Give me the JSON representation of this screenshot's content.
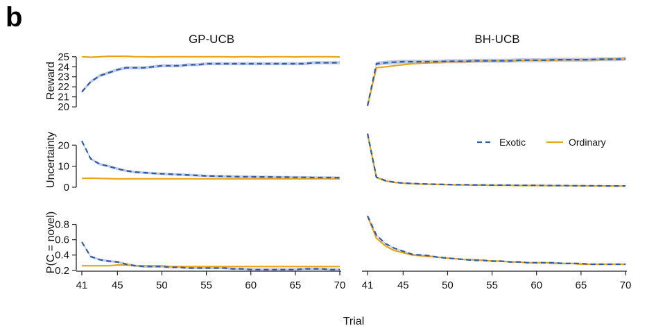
{
  "panel_label": "b",
  "chart_data": {
    "type": "line",
    "xlabel": "Trial",
    "x_ticks": [
      41,
      45,
      50,
      55,
      60,
      65,
      70
    ],
    "xlim": [
      41,
      70
    ],
    "x": [
      41,
      42,
      43,
      44,
      45,
      46,
      47,
      48,
      49,
      50,
      51,
      52,
      53,
      54,
      55,
      56,
      57,
      58,
      59,
      60,
      61,
      62,
      63,
      64,
      65,
      66,
      67,
      68,
      69,
      70
    ],
    "facets": [
      "GP-UCB",
      "BH-UCB"
    ],
    "legend": {
      "placement": "inside middle-right panel",
      "entries": [
        {
          "name": "Exotic",
          "color": "#2B5DA8",
          "style": "dashed"
        },
        {
          "name": "Ordinary",
          "color": "#E8A317",
          "style": "solid"
        }
      ]
    },
    "band_color": "#B4BEE0",
    "rows": [
      {
        "ylabel": "Reward",
        "ylim": [
          19.8,
          25.4
        ],
        "yticks": [
          20,
          21,
          22,
          23,
          24,
          25
        ],
        "panels": [
          {
            "facet": "GP-UCB",
            "series": [
              {
                "name": "Exotic",
                "band": 0.15,
                "values": [
                  21.5,
                  22.5,
                  23.1,
                  23.4,
                  23.7,
                  23.9,
                  23.9,
                  23.9,
                  24.0,
                  24.1,
                  24.1,
                  24.1,
                  24.2,
                  24.2,
                  24.3,
                  24.3,
                  24.3,
                  24.3,
                  24.3,
                  24.3,
                  24.3,
                  24.3,
                  24.3,
                  24.3,
                  24.3,
                  24.3,
                  24.4,
                  24.4,
                  24.4,
                  24.4
                ]
              },
              {
                "name": "Ordinary",
                "values": [
                  25.0,
                  24.95,
                  25.0,
                  25.05,
                  25.05,
                  25.05,
                  25.0,
                  25.0,
                  24.98,
                  25.0,
                  25.0,
                  25.0,
                  25.0,
                  25.0,
                  25.0,
                  25.0,
                  25.0,
                  24.98,
                  25.0,
                  25.0,
                  24.98,
                  25.0,
                  25.0,
                  25.0,
                  24.98,
                  25.0,
                  25.0,
                  25.0,
                  25.0,
                  24.98
                ]
              }
            ]
          },
          {
            "facet": "BH-UCB",
            "series": [
              {
                "name": "Exotic",
                "band": 0.2,
                "values": [
                  20.1,
                  24.3,
                  24.4,
                  24.45,
                  24.5,
                  24.5,
                  24.5,
                  24.5,
                  24.5,
                  24.55,
                  24.55,
                  24.55,
                  24.6,
                  24.6,
                  24.6,
                  24.6,
                  24.6,
                  24.65,
                  24.65,
                  24.65,
                  24.65,
                  24.7,
                  24.7,
                  24.7,
                  24.7,
                  24.7,
                  24.75,
                  24.75,
                  24.75,
                  24.8
                ]
              },
              {
                "name": "Ordinary",
                "values": [
                  20.1,
                  23.9,
                  24.0,
                  24.1,
                  24.2,
                  24.3,
                  24.35,
                  24.4,
                  24.45,
                  24.5,
                  24.5,
                  24.5,
                  24.55,
                  24.55,
                  24.6,
                  24.6,
                  24.6,
                  24.6,
                  24.65,
                  24.65,
                  24.65,
                  24.65,
                  24.7,
                  24.7,
                  24.7,
                  24.7,
                  24.7,
                  24.75,
                  24.75,
                  24.75
                ]
              }
            ]
          }
        ]
      },
      {
        "ylabel": "Uncertainty",
        "ylim": [
          -1,
          27
        ],
        "yticks": [
          0,
          10,
          20
        ],
        "panels": [
          {
            "facet": "GP-UCB",
            "series": [
              {
                "name": "Exotic",
                "band": 0.6,
                "values": [
                  22.0,
                  13.5,
                  11.0,
                  10.0,
                  8.8,
                  7.8,
                  7.2,
                  6.9,
                  6.6,
                  6.4,
                  6.2,
                  6.0,
                  5.8,
                  5.6,
                  5.4,
                  5.3,
                  5.2,
                  5.1,
                  5.0,
                  5.0,
                  4.9,
                  4.9,
                  4.8,
                  4.8,
                  4.7,
                  4.7,
                  4.6,
                  4.6,
                  4.6,
                  4.5
                ]
              },
              {
                "name": "Ordinary",
                "values": [
                  4.2,
                  4.3,
                  4.2,
                  4.1,
                  4.0,
                  4.0,
                  4.0,
                  4.0,
                  4.0,
                  4.0,
                  4.0,
                  4.0,
                  4.0,
                  4.0,
                  4.0,
                  4.0,
                  4.0,
                  4.0,
                  4.0,
                  4.0,
                  4.0,
                  4.0,
                  4.0,
                  4.0,
                  4.0,
                  4.0,
                  4.0,
                  4.0,
                  4.0,
                  4.0
                ]
              }
            ]
          },
          {
            "facet": "BH-UCB",
            "series": [
              {
                "name": "Exotic",
                "band": 0.3,
                "values": [
                  25.5,
                  4.8,
                  3.2,
                  2.4,
                  2.0,
                  1.8,
                  1.6,
                  1.5,
                  1.4,
                  1.3,
                  1.2,
                  1.2,
                  1.1,
                  1.1,
                  1.0,
                  1.0,
                  1.0,
                  0.9,
                  0.9,
                  0.9,
                  0.8,
                  0.8,
                  0.8,
                  0.7,
                  0.7,
                  0.7,
                  0.7,
                  0.6,
                  0.6,
                  0.6
                ]
              },
              {
                "name": "Ordinary",
                "values": [
                  25.5,
                  4.6,
                  3.0,
                  2.3,
                  1.9,
                  1.7,
                  1.5,
                  1.4,
                  1.3,
                  1.2,
                  1.1,
                  1.1,
                  1.0,
                  1.0,
                  0.9,
                  0.9,
                  0.9,
                  0.8,
                  0.8,
                  0.8,
                  0.8,
                  0.7,
                  0.7,
                  0.7,
                  0.7,
                  0.6,
                  0.6,
                  0.6,
                  0.6,
                  0.6
                ]
              }
            ]
          }
        ]
      },
      {
        "ylabel": "P(C = novel)",
        "ylim": [
          0.18,
          0.95
        ],
        "yticks": [
          0.2,
          0.4,
          0.6,
          0.8
        ],
        "panels": [
          {
            "facet": "GP-UCB",
            "series": [
              {
                "name": "Exotic",
                "band": 0.015,
                "values": [
                  0.57,
                  0.38,
                  0.34,
                  0.32,
                  0.31,
                  0.28,
                  0.26,
                  0.25,
                  0.25,
                  0.25,
                  0.24,
                  0.24,
                  0.23,
                  0.23,
                  0.23,
                  0.23,
                  0.23,
                  0.22,
                  0.22,
                  0.21,
                  0.21,
                  0.21,
                  0.21,
                  0.21,
                  0.21,
                  0.22,
                  0.22,
                  0.22,
                  0.21,
                  0.21
                ]
              },
              {
                "name": "Ordinary",
                "values": [
                  0.26,
                  0.26,
                  0.26,
                  0.26,
                  0.27,
                  0.27,
                  0.26,
                  0.26,
                  0.26,
                  0.26,
                  0.25,
                  0.25,
                  0.25,
                  0.25,
                  0.25,
                  0.25,
                  0.25,
                  0.25,
                  0.25,
                  0.25,
                  0.25,
                  0.25,
                  0.25,
                  0.25,
                  0.25,
                  0.25,
                  0.25,
                  0.25,
                  0.25,
                  0.25
                ]
              }
            ]
          },
          {
            "facet": "BH-UCB",
            "series": [
              {
                "name": "Exotic",
                "band": 0.01,
                "values": [
                  0.91,
                  0.66,
                  0.55,
                  0.49,
                  0.45,
                  0.41,
                  0.4,
                  0.39,
                  0.37,
                  0.36,
                  0.35,
                  0.34,
                  0.33,
                  0.33,
                  0.32,
                  0.32,
                  0.31,
                  0.31,
                  0.3,
                  0.3,
                  0.3,
                  0.3,
                  0.29,
                  0.29,
                  0.29,
                  0.28,
                  0.28,
                  0.28,
                  0.28,
                  0.28
                ]
              },
              {
                "name": "Ordinary",
                "values": [
                  0.91,
                  0.62,
                  0.52,
                  0.46,
                  0.43,
                  0.4,
                  0.39,
                  0.38,
                  0.37,
                  0.36,
                  0.35,
                  0.34,
                  0.34,
                  0.33,
                  0.32,
                  0.32,
                  0.31,
                  0.31,
                  0.3,
                  0.3,
                  0.3,
                  0.29,
                  0.29,
                  0.29,
                  0.28,
                  0.28,
                  0.28,
                  0.28,
                  0.28,
                  0.28
                ]
              }
            ]
          }
        ]
      }
    ]
  }
}
